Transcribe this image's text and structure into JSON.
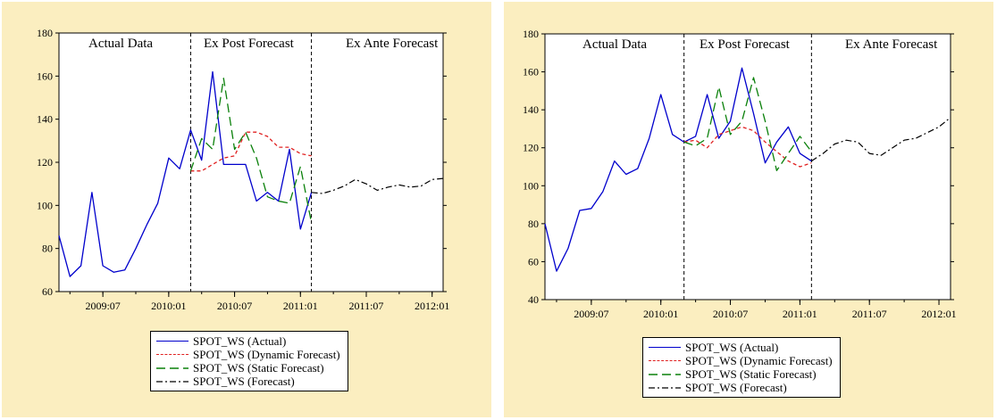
{
  "colors": {
    "background": "#fbeec0",
    "plot_area": "#ffffff",
    "actual": "#0000cc",
    "dynamic": "#e02020",
    "static": "#0a800a",
    "forecast": "#000000"
  },
  "legend": [
    {
      "label": "SPOT_WS (Actual)",
      "color": "#0000cc",
      "style": "solid"
    },
    {
      "label": "SPOT_WS (Dynamic Forecast)",
      "color": "#e02020",
      "style": "short-dash"
    },
    {
      "label": "SPOT_WS (Static Forecast)",
      "color": "#0a800a",
      "style": "long-dash"
    },
    {
      "label": "SPOT_WS (Forecast)",
      "color": "#000000",
      "style": "dash-dot"
    }
  ],
  "chart_data": [
    {
      "type": "line",
      "regions": [
        "Actual Data",
        "Ex Post Forecast",
        "Ex Ante Forecast"
      ],
      "ylim": [
        60,
        180
      ],
      "yticks": [
        "60",
        "80",
        "100",
        "120",
        "140",
        "160",
        "180"
      ],
      "xticks": [
        "2009:07",
        "2010:01",
        "2010:07",
        "2011:01",
        "2011:07",
        "2012:01"
      ],
      "x_range": [
        "2009:03",
        "2012:02"
      ],
      "dividers": [
        "2010:03",
        "2011:02"
      ],
      "legend_position": "below",
      "series": [
        {
          "name": "SPOT_WS (Actual)",
          "x": [
            "2009:03",
            "2009:04",
            "2009:05",
            "2009:06",
            "2009:07",
            "2009:08",
            "2009:09",
            "2009:10",
            "2009:11",
            "2009:12",
            "2010:01",
            "2010:02",
            "2010:03",
            "2010:04",
            "2010:05",
            "2010:06",
            "2010:07",
            "2010:08",
            "2010:09",
            "2010:10",
            "2010:11",
            "2010:12",
            "2011:01",
            "2011:02"
          ],
          "values": [
            86,
            67,
            72,
            106,
            72,
            69,
            70,
            80,
            91,
            101,
            122,
            117,
            135,
            121,
            162,
            119,
            119,
            119,
            102,
            106,
            102,
            126,
            89,
            106
          ]
        },
        {
          "name": "SPOT_WS (Dynamic Forecast)",
          "x": [
            "2010:03",
            "2010:04",
            "2010:05",
            "2010:06",
            "2010:07",
            "2010:08",
            "2010:09",
            "2010:10",
            "2010:11",
            "2010:12",
            "2011:01",
            "2011:02"
          ],
          "values": [
            116,
            116,
            119,
            122,
            123,
            134,
            134,
            132,
            127,
            127,
            124,
            123
          ]
        },
        {
          "name": "SPOT_WS (Static Forecast)",
          "x": [
            "2010:03",
            "2010:04",
            "2010:05",
            "2010:06",
            "2010:07",
            "2010:08",
            "2010:09",
            "2010:10",
            "2010:11",
            "2010:12",
            "2011:01",
            "2011:02"
          ],
          "values": [
            116,
            131,
            126,
            159,
            126,
            134,
            122,
            104,
            102,
            101,
            118,
            92
          ]
        },
        {
          "name": "SPOT_WS (Forecast)",
          "x": [
            "2011:02",
            "2011:03",
            "2011:04",
            "2011:05",
            "2011:06",
            "2011:07",
            "2011:08",
            "2011:09",
            "2011:10",
            "2011:11",
            "2011:12",
            "2012:01",
            "2012:02"
          ],
          "values": [
            106,
            105.5,
            107,
            109,
            112,
            110,
            107,
            108.5,
            109.5,
            108.5,
            109,
            112,
            112.5
          ]
        }
      ]
    },
    {
      "type": "line",
      "regions": [
        "Actual Data",
        "Ex Post Forecast",
        "Ex Ante Forecast"
      ],
      "ylim": [
        40,
        180
      ],
      "yticks": [
        "40",
        "60",
        "80",
        "100",
        "120",
        "140",
        "160",
        "180"
      ],
      "xticks": [
        "2009:07",
        "2010:01",
        "2010:07",
        "2011:01",
        "2011:07",
        "2012:01"
      ],
      "x_range": [
        "2009:03",
        "2012:02"
      ],
      "dividers": [
        "2010:03",
        "2011:02"
      ],
      "legend_position": "below",
      "series": [
        {
          "name": "SPOT_WS (Actual)",
          "x": [
            "2009:03",
            "2009:04",
            "2009:05",
            "2009:06",
            "2009:07",
            "2009:08",
            "2009:09",
            "2009:10",
            "2009:11",
            "2009:12",
            "2010:01",
            "2010:02",
            "2010:03",
            "2010:04",
            "2010:05",
            "2010:06",
            "2010:07",
            "2010:08",
            "2010:09",
            "2010:10",
            "2010:11",
            "2010:12",
            "2011:01",
            "2011:02"
          ],
          "values": [
            80,
            55,
            67,
            87,
            88,
            97,
            113,
            106,
            109,
            125,
            148,
            127,
            123,
            126,
            148,
            125,
            134,
            162,
            138,
            112,
            123,
            131,
            117,
            113
          ]
        },
        {
          "name": "SPOT_WS (Dynamic Forecast)",
          "x": [
            "2010:03",
            "2010:04",
            "2010:05",
            "2010:06",
            "2010:07",
            "2010:08",
            "2010:09",
            "2010:10",
            "2010:11",
            "2010:12",
            "2011:01",
            "2011:02"
          ],
          "values": [
            123,
            124,
            120,
            127,
            129,
            131,
            129,
            123,
            118,
            113,
            110,
            112
          ]
        },
        {
          "name": "SPOT_WS (Static Forecast)",
          "x": [
            "2010:03",
            "2010:04",
            "2010:05",
            "2010:06",
            "2010:07",
            "2010:08",
            "2010:09",
            "2010:10",
            "2010:11",
            "2010:12",
            "2011:01",
            "2011:02"
          ],
          "values": [
            123,
            121,
            125,
            152,
            127,
            134,
            157,
            134,
            108,
            117,
            126,
            118
          ]
        },
        {
          "name": "SPOT_WS (Forecast)",
          "x": [
            "2011:02",
            "2011:03",
            "2011:04",
            "2011:05",
            "2011:06",
            "2011:07",
            "2011:08",
            "2011:09",
            "2011:10",
            "2011:11",
            "2011:12",
            "2012:01",
            "2012:02"
          ],
          "values": [
            113,
            117,
            122,
            124,
            123,
            117,
            116,
            120,
            124,
            125,
            128,
            131,
            136
          ]
        }
      ]
    }
  ]
}
